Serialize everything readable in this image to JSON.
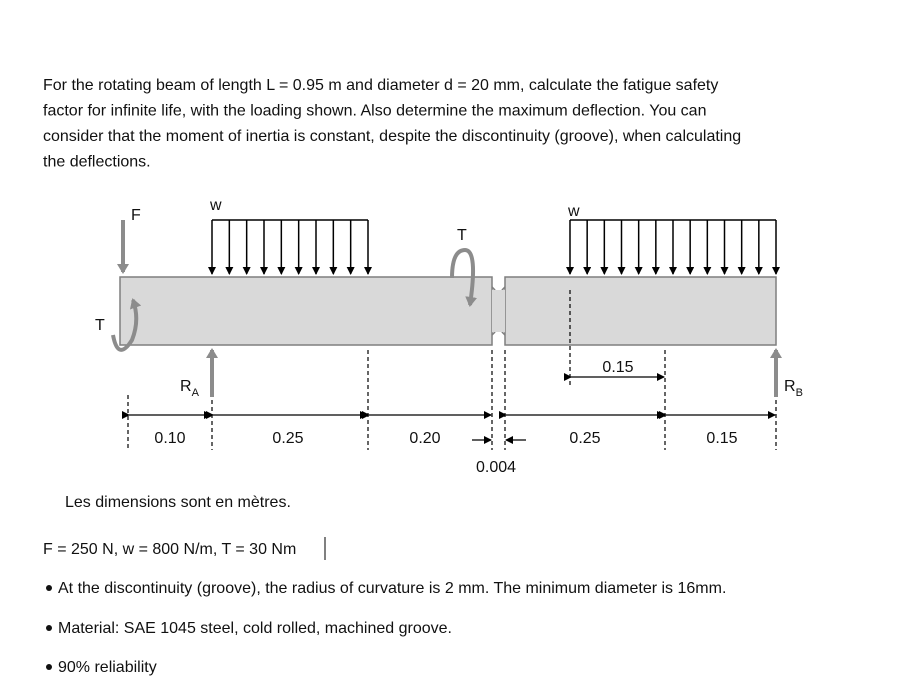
{
  "intro": {
    "lines": [
      "For the rotating beam of length L = 0.95 m and diameter d = 20 mm, calculate the fatigue safety",
      "factor for infinite life, with the loading shown. Also determine the maximum deflection. You can",
      "consider that the moment of inertia is constant, despite the discontinuity (groove), when calculating",
      "the deflections."
    ]
  },
  "diagram": {
    "force_label": "F",
    "load_left_label": "w",
    "load_right_label": "w",
    "torque_left_label": "T",
    "torque_right_label": "T",
    "reaction_a": {
      "label": "R",
      "subscript": "A"
    },
    "reaction_b": {
      "label": "R",
      "subscript": "B"
    },
    "dimensions": [
      "0.10",
      "0.25",
      "0.20",
      "0.004",
      "0.25",
      "0.15"
    ],
    "top_dimension": "0.15",
    "note": "Les dimensions sont en mètres."
  },
  "givens": "F = 250 N, w = 800 N/m, T = 30 Nm",
  "bullets": [
    "At the discontinuity (groove), the radius of curvature is 2 mm. The minimum diameter is 16mm.",
    "Material: SAE 1045 steel, cold rolled, machined groove.",
    "90% reliability"
  ]
}
